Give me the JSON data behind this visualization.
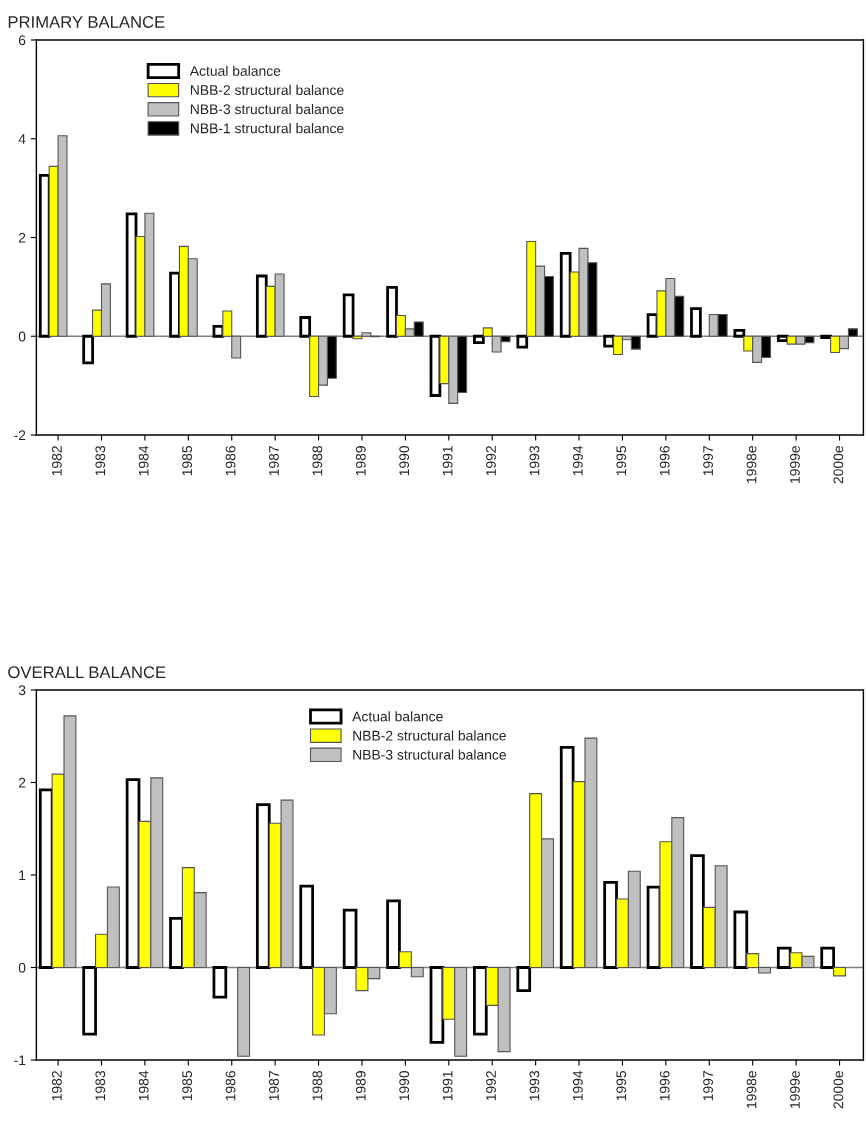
{
  "chart_data": [
    {
      "type": "bar",
      "title": "PRIMARY BALANCE",
      "categories": [
        "1982",
        "1983",
        "1984",
        "1985",
        "1986",
        "1987",
        "1988",
        "1989",
        "1990",
        "1991",
        "1992",
        "1993",
        "1994",
        "1995",
        "1996",
        "1997",
        "1998e",
        "1999e",
        "2000e"
      ],
      "series": [
        {
          "name": "Actual balance",
          "color": "#ffffff",
          "values": [
            3.26,
            -0.54,
            2.48,
            1.28,
            0.2,
            1.22,
            0.38,
            0.84,
            0.99,
            -1.2,
            -0.13,
            -0.22,
            1.68,
            -0.2,
            0.44,
            0.56,
            0.12,
            -0.09,
            -0.03
          ]
        },
        {
          "name": "NBB-2 structural balance",
          "color": "#ffff00",
          "values": [
            3.44,
            0.53,
            2.02,
            1.82,
            0.51,
            1.01,
            -1.22,
            -0.05,
            0.42,
            -0.96,
            0.17,
            1.92,
            1.3,
            -0.37,
            0.92,
            null,
            -0.3,
            -0.16,
            -0.33
          ]
        },
        {
          "name": "NBB-3 structural balance",
          "color": "#c0c0c0",
          "values": [
            4.06,
            1.06,
            2.49,
            1.57,
            -0.44,
            1.26,
            -0.99,
            0.07,
            0.15,
            -1.36,
            -0.32,
            1.42,
            1.78,
            -0.07,
            1.17,
            0.44,
            -0.53,
            -0.16,
            -0.25
          ]
        },
        {
          "name": "NBB-1 structural balance",
          "color": "#000000",
          "values": [
            null,
            null,
            null,
            null,
            null,
            null,
            -0.85,
            -0.01,
            0.29,
            -1.14,
            -0.11,
            1.21,
            1.49,
            -0.26,
            0.81,
            0.44,
            -0.43,
            -0.13,
            0.15
          ]
        }
      ],
      "ylim": [
        -2,
        6
      ],
      "yticks": [
        -2,
        0,
        2,
        4,
        6
      ],
      "ref_lines": [
        {
          "axis": "y",
          "value": 0,
          "color": "#808080"
        }
      ],
      "legend": "top left"
    },
    {
      "type": "bar",
      "title": "OVERALL BALANCE",
      "categories": [
        "1982",
        "1983",
        "1984",
        "1985",
        "1986",
        "1987",
        "1988",
        "1989",
        "1990",
        "1991",
        "1992",
        "1993",
        "1994",
        "1995",
        "1996",
        "1997",
        "1998e",
        "1999e",
        "2000e"
      ],
      "series": [
        {
          "name": "Actual balance",
          "color": "#ffffff",
          "values": [
            1.92,
            -0.72,
            2.03,
            0.53,
            -0.32,
            1.76,
            0.88,
            0.62,
            0.72,
            -0.81,
            -0.72,
            -0.25,
            2.38,
            0.92,
            0.87,
            1.21,
            0.6,
            0.21,
            0.21
          ]
        },
        {
          "name": "NBB-2 structural balance",
          "color": "#ffff00",
          "values": [
            2.09,
            0.36,
            1.58,
            1.08,
            null,
            1.56,
            -0.73,
            -0.25,
            0.17,
            -0.56,
            -0.41,
            1.88,
            2.01,
            0.74,
            1.36,
            0.65,
            0.15,
            0.16,
            -0.09
          ]
        },
        {
          "name": "NBB-3 structural balance",
          "color": "#c0c0c0",
          "values": [
            2.72,
            0.87,
            2.05,
            0.81,
            -0.96,
            1.81,
            -0.5,
            -0.12,
            -0.1,
            -0.96,
            -0.91,
            1.39,
            2.48,
            1.04,
            1.62,
            1.1,
            -0.06,
            0.12,
            null
          ]
        }
      ],
      "ylim": [
        -1,
        3
      ],
      "yticks": [
        -1,
        0,
        1,
        2,
        3
      ],
      "ref_lines": [
        {
          "axis": "y",
          "value": 0,
          "color": "#808080"
        }
      ],
      "legend": "top"
    }
  ]
}
